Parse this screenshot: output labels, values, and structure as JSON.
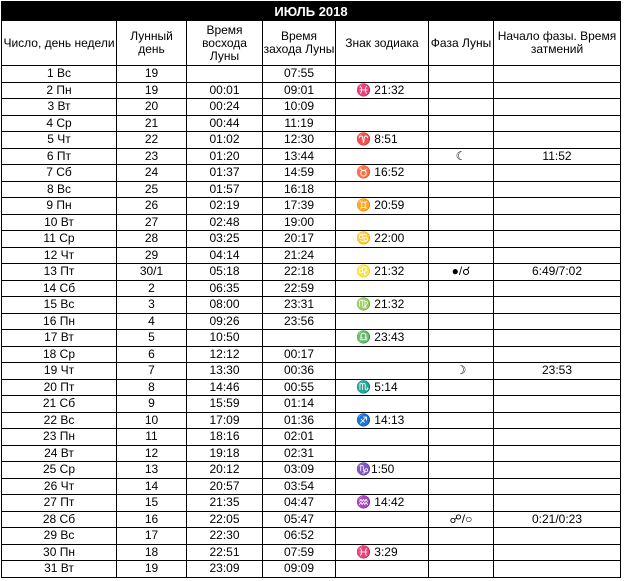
{
  "title": "ИЮЛЬ 2018",
  "headers": [
    "Число, день недели",
    "Лунный день",
    "Время восхода Луны",
    "Время захода Луны",
    "Знак зодиака",
    "Фаза Луны",
    "Начало фазы. Время затмений"
  ],
  "rows": [
    [
      "1 Вс",
      "19",
      "",
      "07:55",
      "",
      "",
      ""
    ],
    [
      "2 Пн",
      "19",
      "00:01",
      "09:01",
      "♓ 21:32",
      "",
      ""
    ],
    [
      "3 Вт",
      "20",
      "00:24",
      "10:09",
      "",
      "",
      ""
    ],
    [
      "4 Ср",
      "21",
      "00:44",
      "11:19",
      "",
      "",
      ""
    ],
    [
      "5 Чт",
      "22",
      "01:02",
      "12:30",
      "♈ 8:51",
      "",
      ""
    ],
    [
      "6 Пт",
      "23",
      "01:20",
      "13:44",
      "",
      "☾",
      "11:52"
    ],
    [
      "7 Сб",
      "24",
      "01:37",
      "14:59",
      "♉ 16:52",
      "",
      ""
    ],
    [
      "8 Вс",
      "25",
      "01:57",
      "16:18",
      "",
      "",
      ""
    ],
    [
      "9 Пн",
      "26",
      "02:19",
      "17:39",
      "♊ 20:59",
      "",
      ""
    ],
    [
      "10 Вт",
      "27",
      "02:48",
      "19:00",
      "",
      "",
      ""
    ],
    [
      "11 Ср",
      "28",
      "03:25",
      "20:17",
      "♋ 22:00",
      "",
      ""
    ],
    [
      "12 Чт",
      "29",
      "04:14",
      "21:24",
      "",
      "",
      ""
    ],
    [
      "13 Пт",
      "30/1",
      "05:18",
      "22:18",
      "♌ 21:32",
      "●/☌",
      "6:49/7:02"
    ],
    [
      "14 Сб",
      "2",
      "06:35",
      "22:59",
      "",
      "",
      ""
    ],
    [
      "15 Вс",
      "3",
      "08:00",
      "23:31",
      "♍ 21:32",
      "",
      ""
    ],
    [
      "16 Пн",
      "4",
      "09:26",
      "23:56",
      "",
      "",
      ""
    ],
    [
      "17 Вт",
      "5",
      "10:50",
      "",
      "♎ 23:43",
      "",
      ""
    ],
    [
      "18 Ср",
      "6",
      "12:12",
      "00:17",
      "",
      "",
      ""
    ],
    [
      "19 Чт",
      "7",
      "13:30",
      "00:36",
      "",
      "☽",
      "23:53"
    ],
    [
      "20 Пт",
      "8",
      "14:46",
      "00:55",
      "♏ 5:14",
      "",
      ""
    ],
    [
      "21 Сб",
      "9",
      "15:59",
      "01:14",
      "",
      "",
      ""
    ],
    [
      "22 Вс",
      "10",
      "17:09",
      "01:36",
      "♐ 14:13",
      "",
      ""
    ],
    [
      "23 Пн",
      "11",
      "18:16",
      "02:01",
      "",
      "",
      ""
    ],
    [
      "24 Вт",
      "12",
      "19:18",
      "02:31",
      "",
      "",
      ""
    ],
    [
      "25 Ср",
      "13",
      "20:12",
      "03:09",
      "♑1:50",
      "",
      ""
    ],
    [
      "26 Чт",
      "14",
      "20:57",
      "03:54",
      "",
      "",
      ""
    ],
    [
      "27 Пт",
      "15",
      "21:35",
      "04:47",
      "♒ 14:42",
      "",
      ""
    ],
    [
      "28 Сб",
      "16",
      "22:05",
      "05:47",
      "",
      "☍/○",
      "0:21/0:23"
    ],
    [
      "29 Вс",
      "17",
      "22:30",
      "06:52",
      "",
      "",
      ""
    ],
    [
      "30 Пн",
      "18",
      "22:51",
      "07:59",
      "♓ 3:29",
      "",
      ""
    ],
    [
      "31 Вт",
      "19",
      "23:09",
      "09:09",
      "",
      "",
      ""
    ]
  ]
}
